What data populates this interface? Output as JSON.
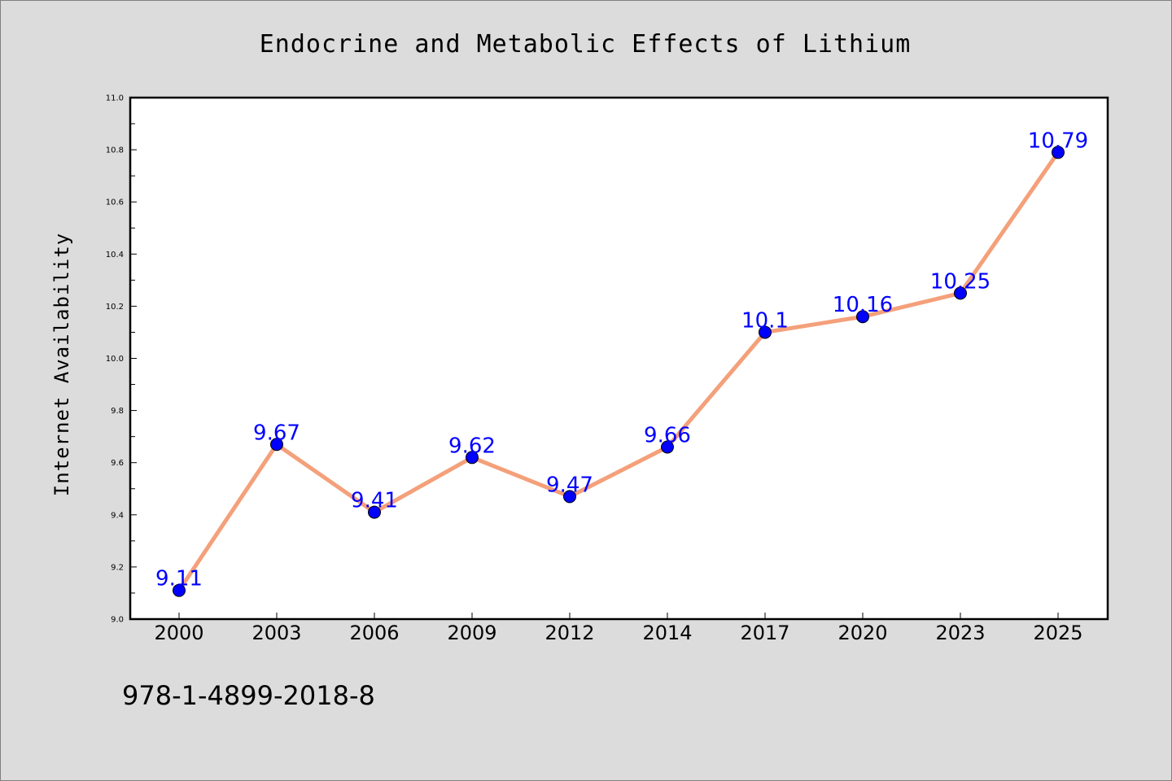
{
  "chart_data": {
    "type": "line",
    "title": "Endocrine and Metabolic Effects of Lithium",
    "xlabel": "",
    "ylabel": "Internet Availability",
    "categories": [
      "2000",
      "2003",
      "2006",
      "2009",
      "2012",
      "2014",
      "2017",
      "2020",
      "2023",
      "2025"
    ],
    "series": [
      {
        "values": [
          9.11,
          9.67,
          9.41,
          9.62,
          9.47,
          9.66,
          10.1,
          10.16,
          10.25,
          10.79
        ],
        "data_labels": [
          "9.11",
          "9.67",
          "9.41",
          "9.62",
          "9.47",
          "9.66",
          "10.1",
          "10.16",
          "10.25",
          "10.79"
        ],
        "line_color": "#f4a07a",
        "marker_color": "#0000ff"
      }
    ],
    "ylim": [
      9.0,
      11.0
    ],
    "yticks": [
      "9.0",
      "9.2",
      "9.4",
      "9.6",
      "9.8",
      "10.0",
      "10.2",
      "10.4",
      "10.6",
      "10.8",
      "11.0"
    ],
    "grid": false,
    "legend": "none"
  },
  "annotation": "978-1-4899-2018-8",
  "colors": {
    "background": "#dcdcdc",
    "plot_area": "#ffffff",
    "line": "#f4a07a",
    "marker": "#0000ff",
    "data_label": "#0000ff"
  }
}
